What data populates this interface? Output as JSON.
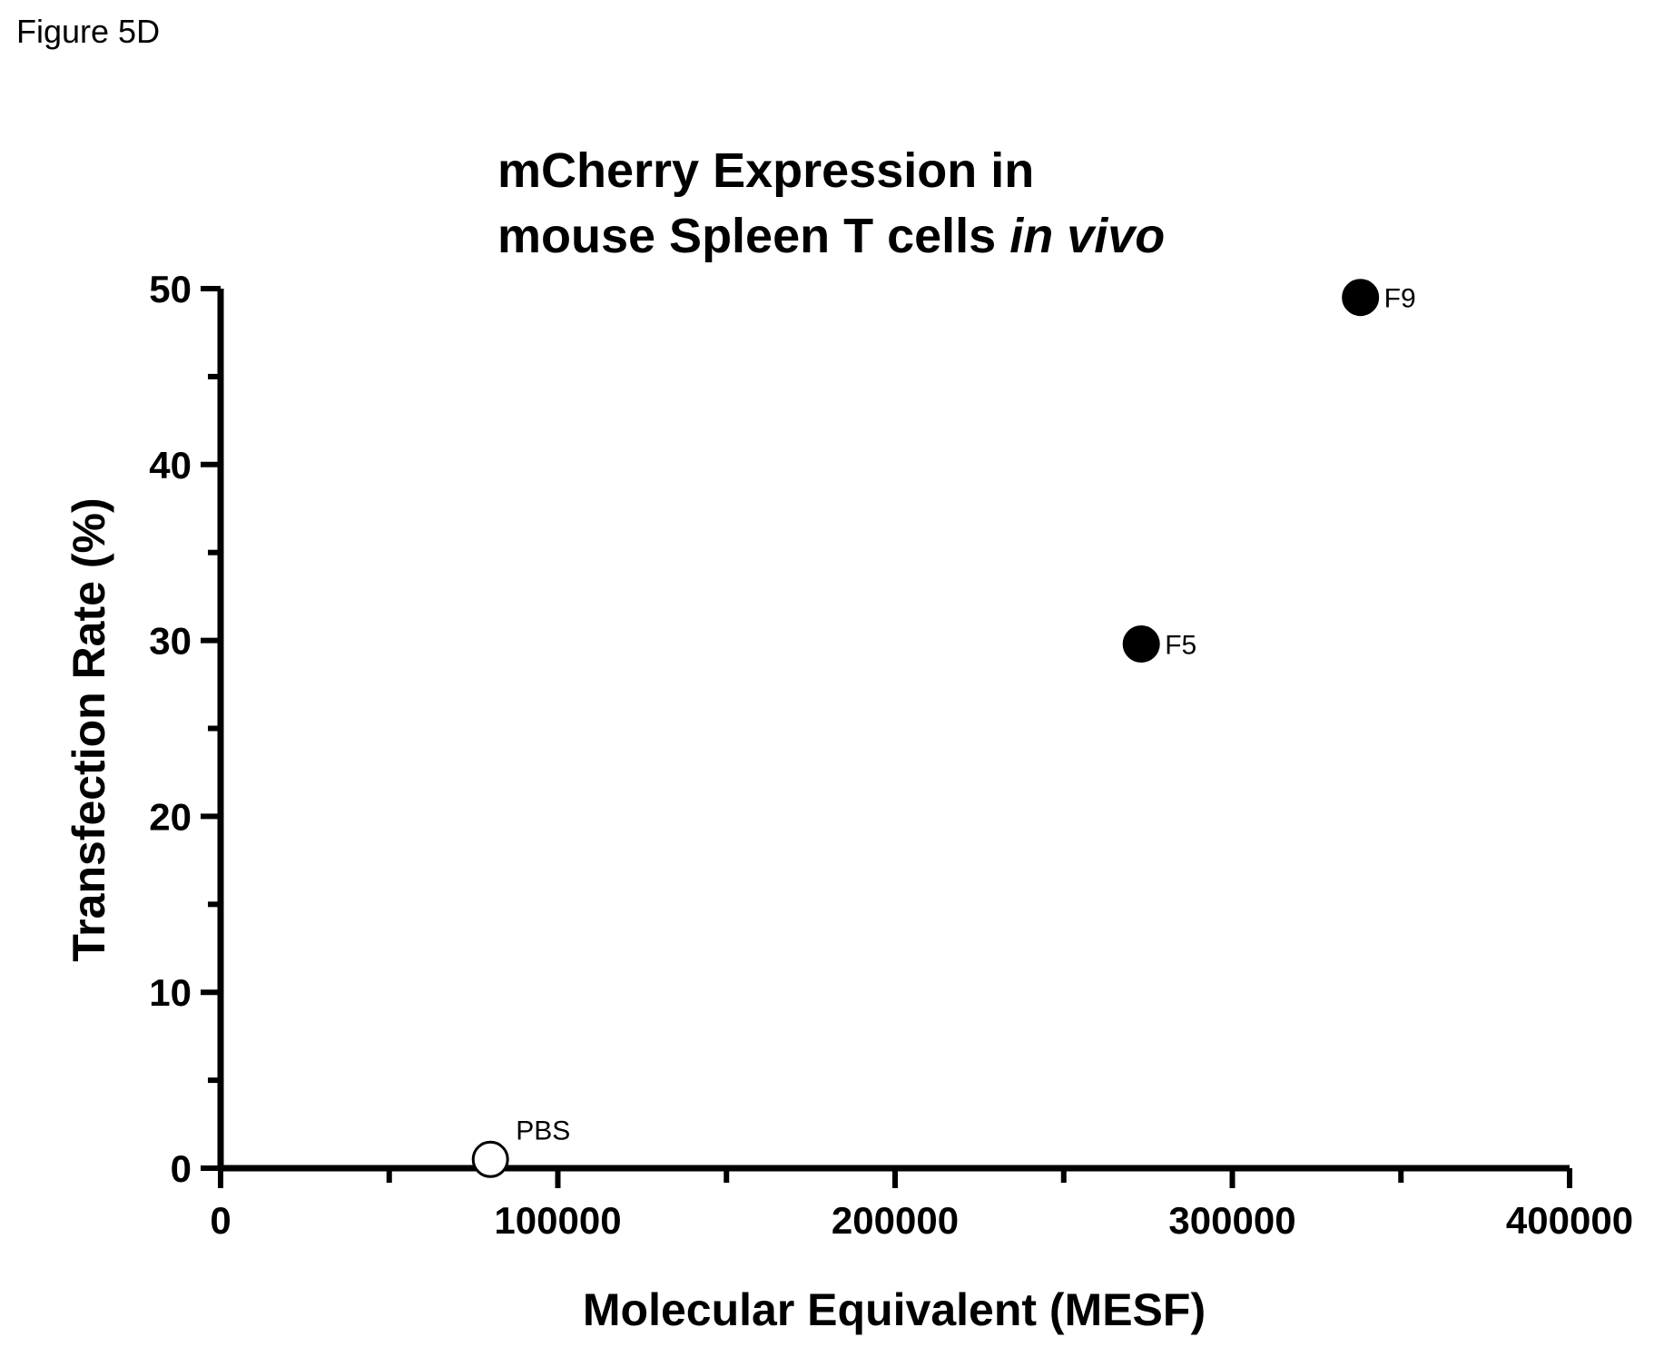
{
  "figure_label": "Figure 5D",
  "chart_data": {
    "type": "scatter",
    "title_line1": "mCherry Expression in",
    "title_line2_normal": "mouse Spleen T cells ",
    "title_line2_italic": "in vivo",
    "xlabel": "Molecular  Equivalent (MESF)",
    "ylabel": "Transfection Rate (%)",
    "xlim": [
      0,
      400000
    ],
    "ylim": [
      0,
      50
    ],
    "xticks": [
      0,
      100000,
      200000,
      300000,
      400000
    ],
    "xtick_labels": [
      "0",
      "100000",
      "200000",
      "300000",
      "400000"
    ],
    "xminor": [
      50000,
      150000,
      250000,
      350000
    ],
    "yticks": [
      0,
      10,
      20,
      30,
      40,
      50
    ],
    "ytick_labels": [
      "0",
      "10",
      "20",
      "30",
      "40",
      "50"
    ],
    "yminor": [
      5,
      15,
      25,
      35,
      45
    ],
    "grid": false,
    "legend": "none",
    "points": [
      {
        "label": "PBS",
        "x": 80000,
        "y": 0.5,
        "filled": false
      },
      {
        "label": "F5",
        "x": 273000,
        "y": 29.8,
        "filled": true
      },
      {
        "label": "F9",
        "x": 338000,
        "y": 49.5,
        "filled": true
      }
    ]
  }
}
